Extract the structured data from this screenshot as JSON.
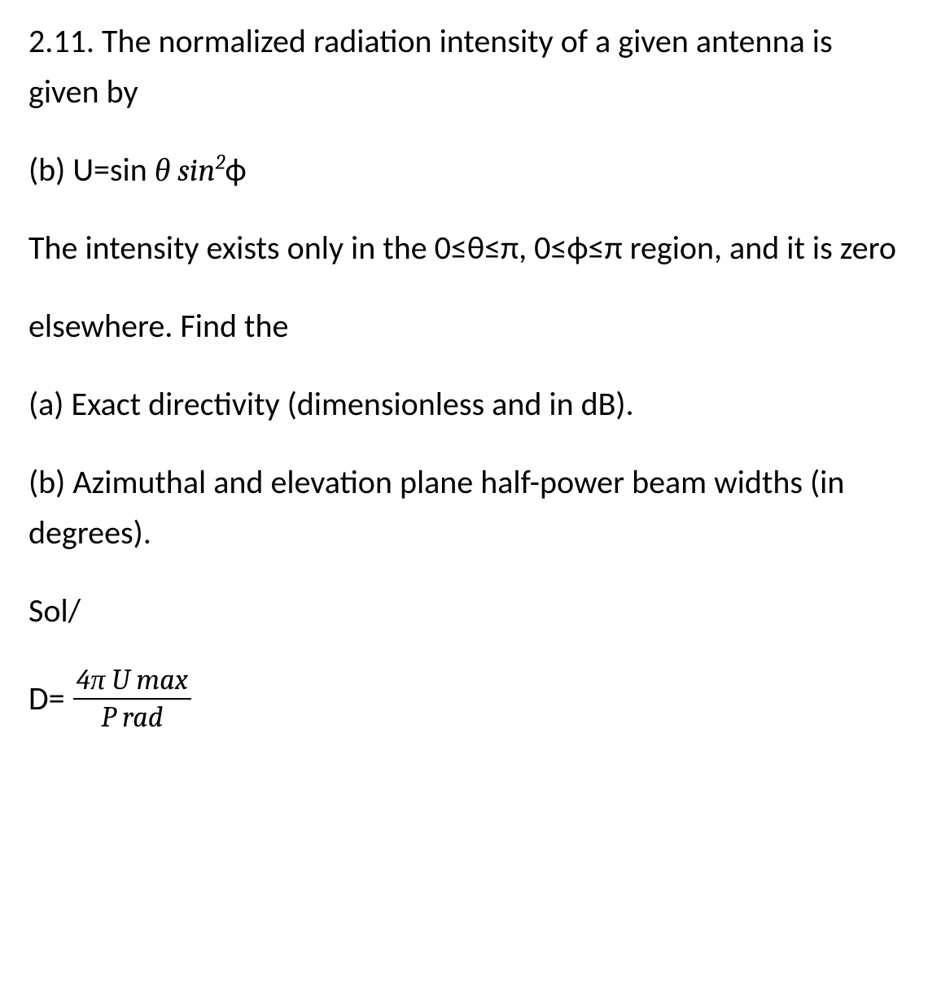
{
  "p1": "2.11. The normalized radiation intensity of a given antenna is given by",
  "eq1_prefix": " (b) U=sin ",
  "eq1_theta": "θ",
  "eq1_sin": "  sin",
  "eq1_sup": "2",
  "eq1_phi": "ϕ",
  "p2": "The intensity exists only in the 0≤θ≤π, 0≤ϕ≤π region, and it is zero",
  "p3": "elsewhere. Find the",
  "p4": "(a) Exact directivity (dimensionless and in dB).",
  "p5": "(b) Azimuthal and elevation plane half-power beam widths (in degrees).",
  "p6": "Sol/",
  "eq2_lhs": "D=",
  "eq2_num": "4π U max",
  "eq2_den": "P rad"
}
